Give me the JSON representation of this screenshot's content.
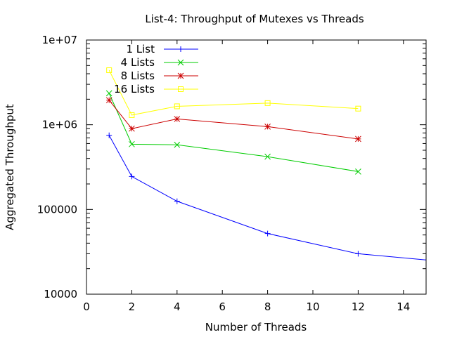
{
  "chart_data": {
    "type": "line",
    "title": "List-4: Throughput of Mutexes vs Threads",
    "xlabel": "Number of Threads",
    "ylabel": "Aggregated Throughput",
    "xlim": [
      0,
      15
    ],
    "ylim": [
      10000,
      10000000
    ],
    "yscale": "log",
    "xticks": [
      0,
      2,
      4,
      6,
      8,
      10,
      12,
      14
    ],
    "yticks": [
      10000,
      100000,
      1000000,
      10000000
    ],
    "xtick_labels": [
      "0",
      "2",
      "4",
      "6",
      "8",
      "10",
      "12",
      "14"
    ],
    "ytick_labels": [
      "10000",
      "100000",
      "1e+06",
      "1e+07"
    ],
    "grid": false,
    "legend_position": "top-left",
    "series": [
      {
        "name": "1 List",
        "color": "#0000ff",
        "marker": "plus",
        "points": [
          [
            1,
            750000
          ],
          [
            2,
            245000
          ],
          [
            4,
            125000
          ],
          [
            8,
            52000
          ],
          [
            12,
            30000
          ],
          [
            16,
            24000
          ]
        ]
      },
      {
        "name": "4 Lists",
        "color": "#00cc00",
        "marker": "cross",
        "points": [
          [
            1,
            2350000
          ],
          [
            2,
            590000
          ],
          [
            4,
            580000
          ],
          [
            8,
            420000
          ],
          [
            12,
            280000
          ]
        ]
      },
      {
        "name": "8 Lists",
        "color": "#cc0000",
        "marker": "star",
        "points": [
          [
            1,
            1950000
          ],
          [
            2,
            900000
          ],
          [
            4,
            1170000
          ],
          [
            8,
            950000
          ],
          [
            12,
            680000
          ]
        ]
      },
      {
        "name": "16 Lists",
        "color": "#ffff00",
        "marker": "square",
        "points": [
          [
            1,
            4400000
          ],
          [
            2,
            1300000
          ],
          [
            4,
            1650000
          ],
          [
            8,
            1800000
          ],
          [
            12,
            1550000
          ]
        ]
      }
    ]
  }
}
